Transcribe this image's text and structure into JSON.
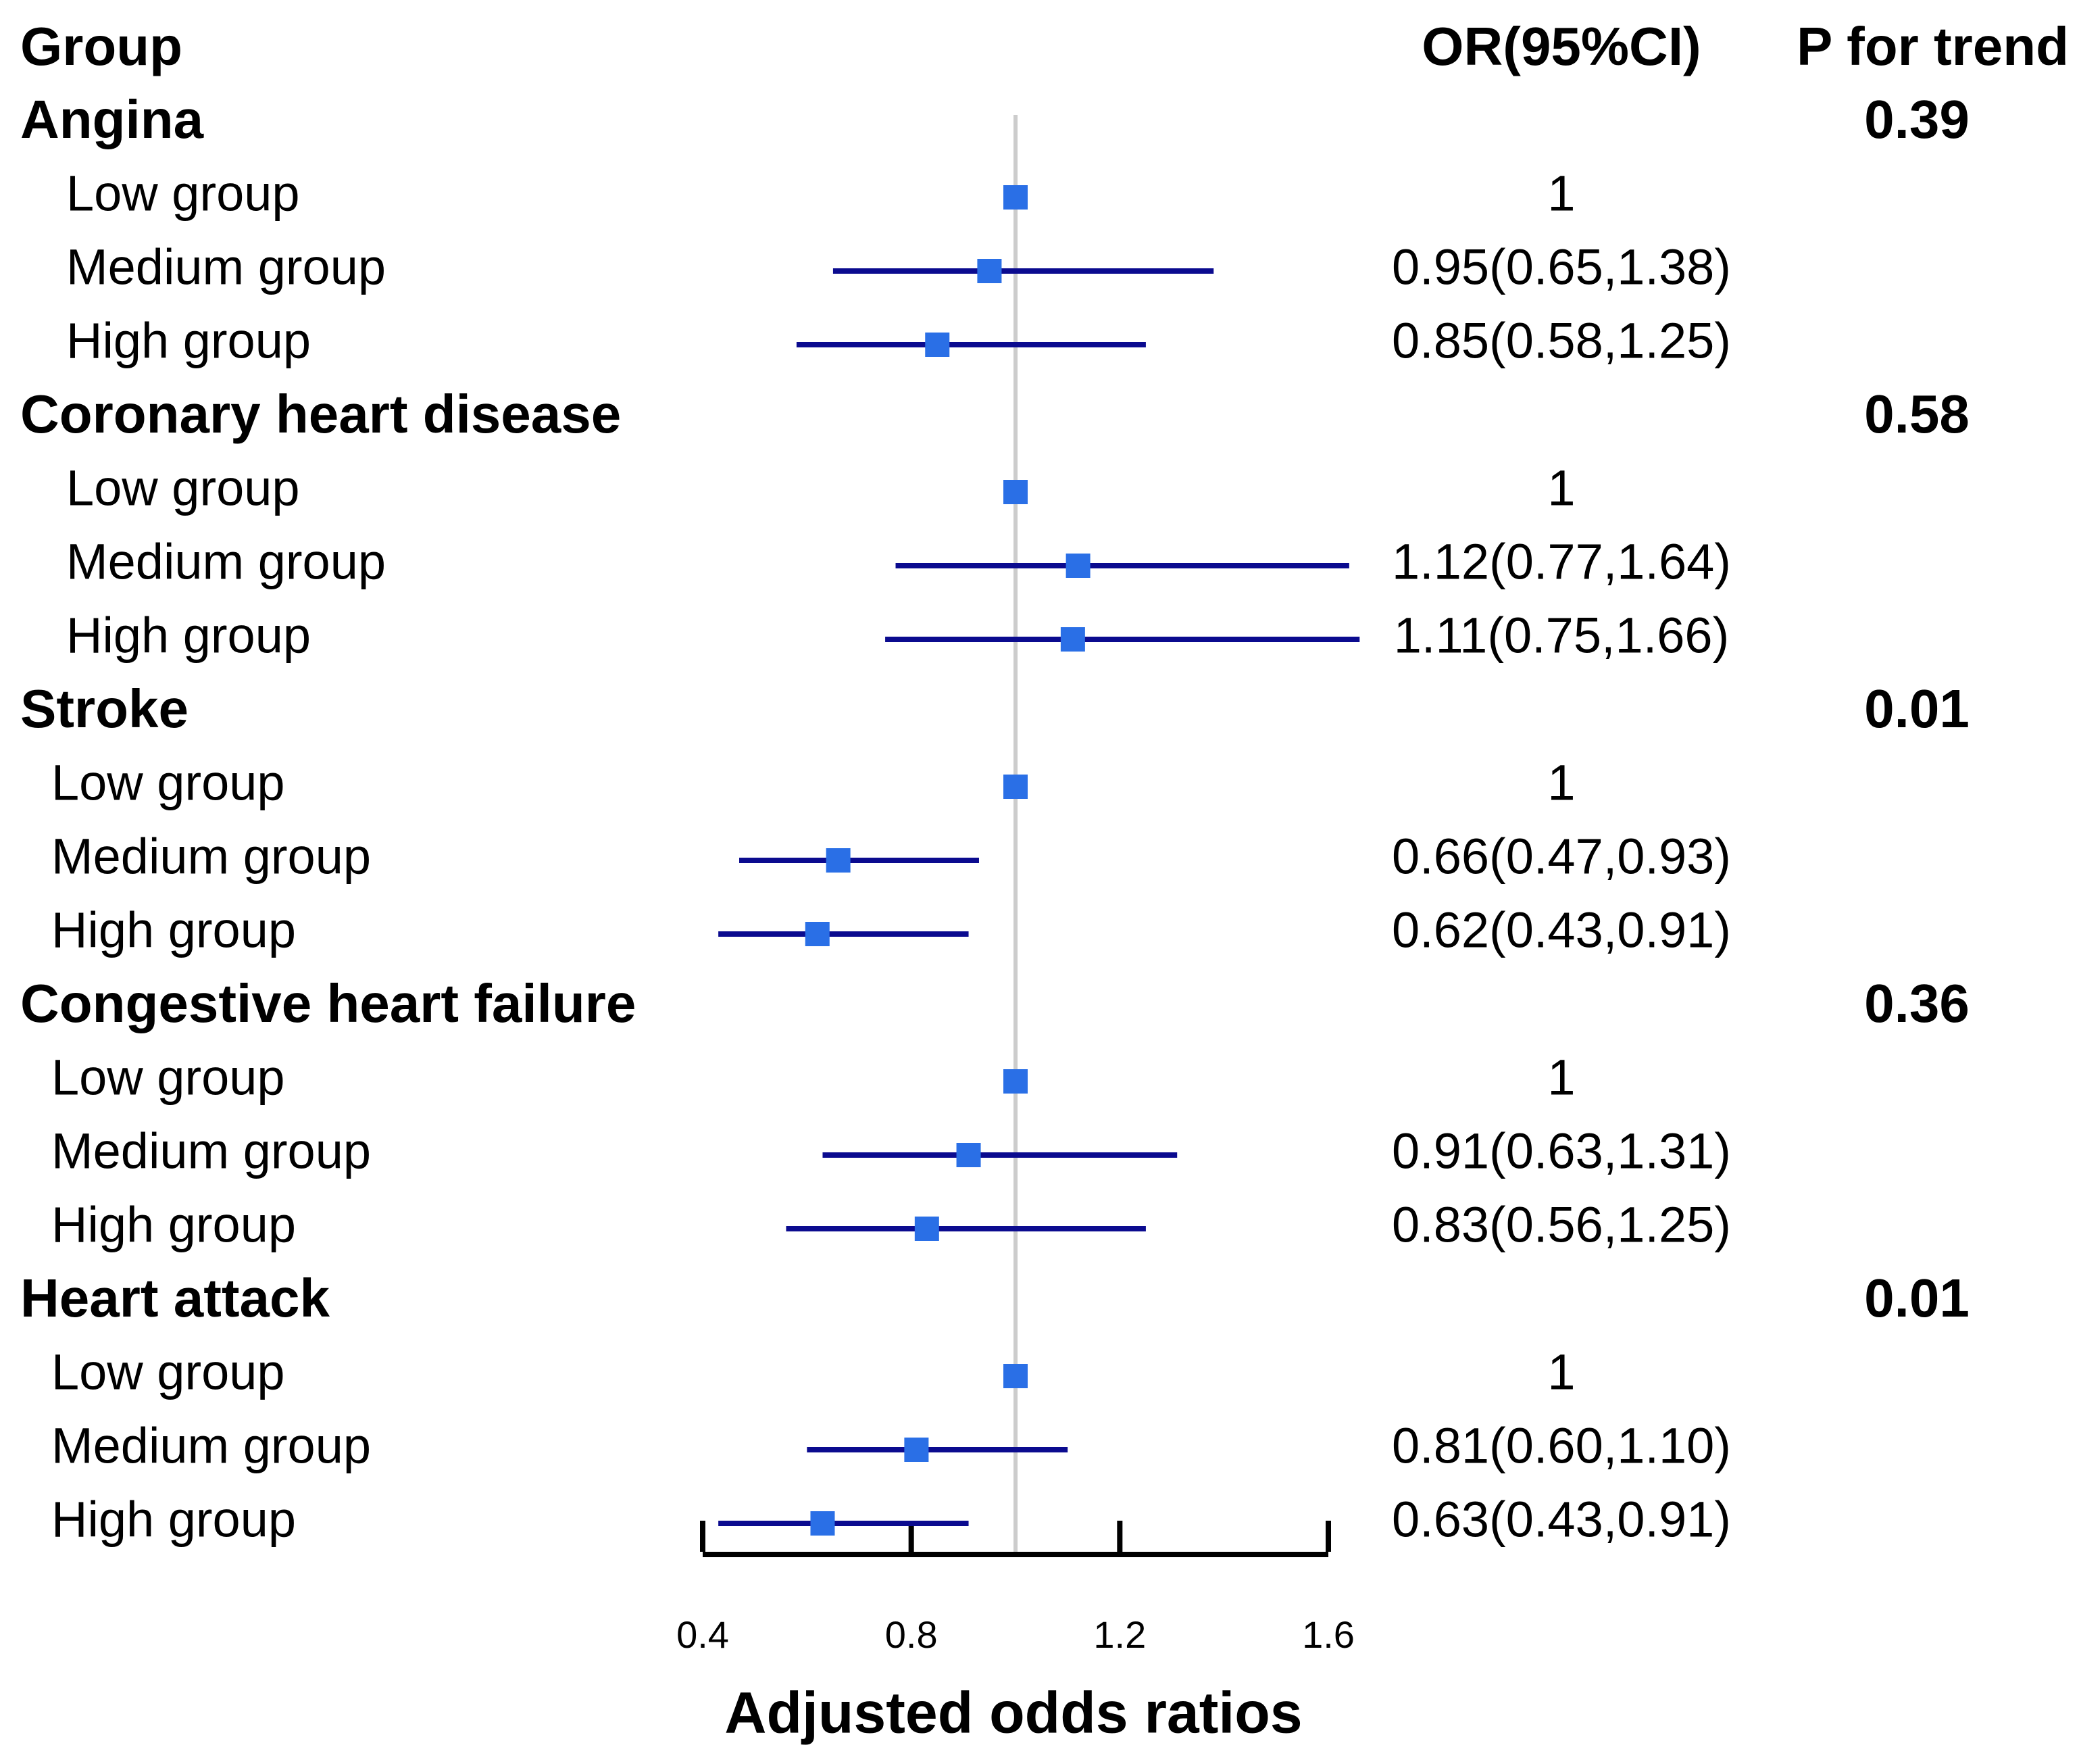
{
  "chart_data": {
    "type": "forest",
    "columns": [
      "Group",
      "OR(95%CI)",
      "P for trend"
    ],
    "xlabel": "Adjusted odds ratios",
    "xlim": [
      0.4,
      1.6
    ],
    "xticks": [
      0.4,
      0.8,
      1.2,
      1.6
    ],
    "reference": 1,
    "marker_color": "#2a6fe6",
    "ci_color": "#0b0b8f",
    "reference_color": "#cccccc",
    "groups": [
      {
        "name": "Angina",
        "p_trend": 0.39,
        "rows": [
          {
            "label": "Low group",
            "or": 1
          },
          {
            "label": "Medium group",
            "or": 0.95,
            "lower": 0.65,
            "upper": 1.38,
            "value_label": "0.95(0.65,1.38)"
          },
          {
            "label": "High group",
            "or": 0.85,
            "lower": 0.58,
            "upper": 1.25,
            "value_label": "0.85(0.58,1.25)"
          }
        ]
      },
      {
        "name": "Coronary heart disease",
        "p_trend": 0.58,
        "rows": [
          {
            "label": "Low group",
            "or": 1
          },
          {
            "label": "Medium group",
            "or": 1.12,
            "lower": 0.77,
            "upper": 1.64,
            "value_label": "1.12(0.77,1.64)"
          },
          {
            "label": "High group",
            "or": 1.11,
            "lower": 0.75,
            "upper": 1.66,
            "value_label": "1.11(0.75,1.66)"
          }
        ]
      },
      {
        "name": "Stroke",
        "p_trend": 0.01,
        "rows": [
          {
            "label": "Low group",
            "or": 1
          },
          {
            "label": "Medium group",
            "or": 0.66,
            "lower": 0.47,
            "upper": 0.93,
            "value_label": "0.66(0.47,0.93)"
          },
          {
            "label": "High group",
            "or": 0.62,
            "lower": 0.43,
            "upper": 0.91,
            "value_label": "0.62(0.43,0.91)"
          }
        ]
      },
      {
        "name": "Congestive heart failure",
        "p_trend": 0.36,
        "rows": [
          {
            "label": "Low group",
            "or": 1
          },
          {
            "label": "Medium group",
            "or": 0.91,
            "lower": 0.63,
            "upper": 1.31,
            "value_label": "0.91(0.63,1.31)"
          },
          {
            "label": "High group",
            "or": 0.83,
            "lower": 0.56,
            "upper": 1.25,
            "value_label": "0.83(0.56,1.25)"
          }
        ]
      },
      {
        "name": "Heart attack",
        "p_trend": 0.01,
        "rows": [
          {
            "label": "Low group",
            "or": 1
          },
          {
            "label": "Medium group",
            "or": 0.81,
            "lower": 0.6,
            "upper": 1.1,
            "value_label": "0.81(0.60,1.10)"
          },
          {
            "label": "High group",
            "or": 0.63,
            "lower": 0.43,
            "upper": 0.91,
            "value_label": "0.63(0.43,0.91)"
          }
        ]
      }
    ]
  }
}
